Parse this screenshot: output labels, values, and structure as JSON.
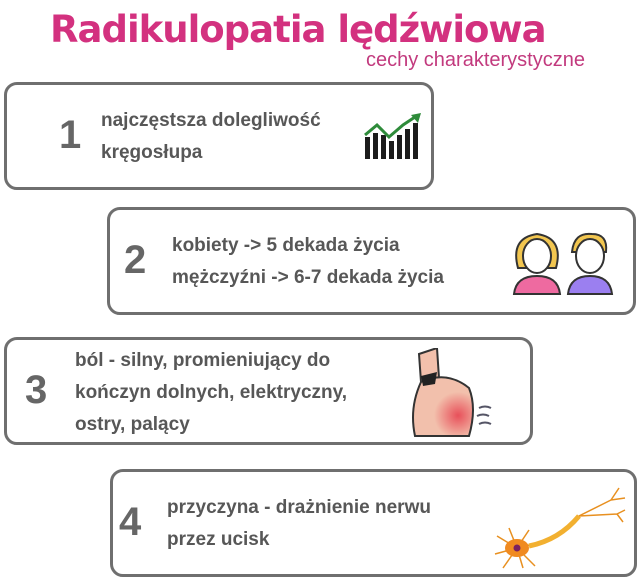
{
  "header": {
    "title": "Radikulopatia lędźwiowa",
    "subtitle": "cechy charakterystyczne"
  },
  "colors": {
    "title": "#d3317f",
    "border": "#6f6f6f",
    "text": "#575757"
  },
  "items": [
    {
      "number": "1",
      "lines": [
        "najczęstsza dolegliwość",
        "kręgosłupa"
      ],
      "icon": "growth-chart-icon"
    },
    {
      "number": "2",
      "lines": [
        "kobiety -> 5 dekada życia",
        "mężczyźni -> 6-7 dekada życia"
      ],
      "icon": "woman-man-icon"
    },
    {
      "number": "3",
      "lines": [
        "ból - silny, promieniujący do",
        "kończyn dolnych, elektryczny,",
        "ostry, palący"
      ],
      "icon": "back-pain-icon"
    },
    {
      "number": "4",
      "lines": [
        "przyczyna - drażnienie nerwu",
        "przez ucisk"
      ],
      "icon": "neuron-icon"
    }
  ]
}
